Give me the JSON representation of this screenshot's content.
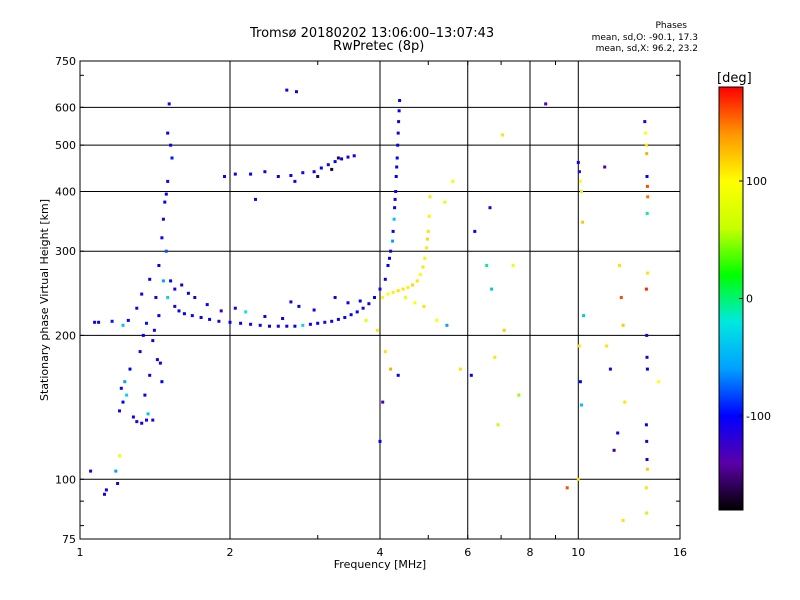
{
  "title_line1": "Tromsø 20180202 13:06:00–13:07:43",
  "title_line2": "RwPretec (8p)",
  "phase_stats": {
    "title": "Phases",
    "o_line": "mean, sd,O: -90.1, 17.3",
    "x_line": "mean, sd,X:  96.2, 23.2"
  },
  "chart_data": {
    "type": "scatter",
    "xlabel": "Frequency [MHz]",
    "ylabel": "Stationary phase Virtual Height [km]",
    "x_scale": "log",
    "y_scale": "log",
    "xlim": [
      1,
      16
    ],
    "ylim": [
      75,
      750
    ],
    "xticks": [
      1,
      2,
      4,
      6,
      8,
      10,
      16
    ],
    "xtick_labels": [
      "1",
      "2",
      "4",
      "6",
      "8",
      "10",
      "16"
    ],
    "yticks": [
      75,
      100,
      200,
      300,
      400,
      500,
      600,
      750
    ],
    "ytick_labels": [
      "75",
      "100",
      "200",
      "300",
      "400",
      "500",
      "600",
      "750"
    ],
    "grid": true,
    "colorbar": {
      "label": "[deg]",
      "range": [
        -180,
        180
      ],
      "tick_values": [
        100,
        0,
        -100
      ],
      "tick_labels": [
        "100",
        "0",
        "-100"
      ],
      "colors": [
        "#000000",
        "#5a00a8",
        "#0000ff",
        "#00a0ff",
        "#00e8e0",
        "#00ff00",
        "#c8ff00",
        "#ffff00",
        "#ff9600",
        "#ff0000"
      ]
    },
    "series": [
      {
        "values": [
          [
            1.05,
            104,
            -105
          ],
          [
            1.12,
            93,
            -110
          ],
          [
            1.13,
            95,
            -108
          ],
          [
            1.18,
            104,
            -60
          ],
          [
            1.2,
            112,
            90
          ],
          [
            1.19,
            98,
            -110
          ],
          [
            1.07,
            213,
            -110
          ],
          [
            1.09,
            213,
            -105
          ],
          [
            1.16,
            214,
            -95
          ],
          [
            1.22,
            210,
            -40
          ],
          [
            1.25,
            215,
            -100
          ],
          [
            1.2,
            139,
            -110
          ],
          [
            1.22,
            145,
            -100
          ],
          [
            1.24,
            150,
            -30
          ],
          [
            1.21,
            155,
            -110
          ],
          [
            1.23,
            160,
            -60
          ],
          [
            1.26,
            170,
            -100
          ],
          [
            1.28,
            135,
            -110
          ],
          [
            1.3,
            132,
            -115
          ],
          [
            1.33,
            131,
            -105
          ],
          [
            1.36,
            133,
            -110
          ],
          [
            1.37,
            137,
            -40
          ],
          [
            1.4,
            133,
            -110
          ],
          [
            1.35,
            150,
            -100
          ],
          [
            1.38,
            165,
            -105
          ],
          [
            1.32,
            185,
            -110
          ],
          [
            1.34,
            200,
            -100
          ],
          [
            1.36,
            212,
            -95
          ],
          [
            1.3,
            228,
            -110
          ],
          [
            1.33,
            244,
            -105
          ],
          [
            1.38,
            262,
            -100
          ],
          [
            1.42,
            240,
            -110
          ],
          [
            1.44,
            220,
            -100
          ],
          [
            1.4,
            195,
            -105
          ],
          [
            1.43,
            178,
            -110
          ],
          [
            1.46,
            160,
            -100
          ],
          [
            1.45,
            175,
            -105
          ],
          [
            1.41,
            205,
            -110
          ],
          [
            1.44,
            280,
            -100
          ],
          [
            1.46,
            320,
            -105
          ],
          [
            1.47,
            350,
            -110
          ],
          [
            1.48,
            380,
            -100
          ],
          [
            1.49,
            395,
            -105
          ],
          [
            1.5,
            420,
            -110
          ],
          [
            1.5,
            530,
            -105
          ],
          [
            1.51,
            610,
            -110
          ],
          [
            1.52,
            500,
            -100
          ],
          [
            1.53,
            470,
            -95
          ],
          [
            1.49,
            300,
            -80
          ],
          [
            1.47,
            260,
            -60
          ],
          [
            1.5,
            240,
            -30
          ],
          [
            1.52,
            260,
            -100
          ],
          [
            1.55,
            230,
            -110
          ],
          [
            1.58,
            225,
            -105
          ],
          [
            1.62,
            222,
            -100
          ],
          [
            1.68,
            220,
            -110
          ],
          [
            1.75,
            218,
            -105
          ],
          [
            1.82,
            216,
            -100
          ],
          [
            1.9,
            214,
            -110
          ],
          [
            2.0,
            213,
            -105
          ],
          [
            2.1,
            212,
            -100
          ],
          [
            2.2,
            211,
            -110
          ],
          [
            2.3,
            210,
            -105
          ],
          [
            2.4,
            209,
            -100
          ],
          [
            2.5,
            209,
            -110
          ],
          [
            2.6,
            209,
            -105
          ],
          [
            2.7,
            209,
            -100
          ],
          [
            2.8,
            210,
            -30
          ],
          [
            2.9,
            211,
            -105
          ],
          [
            3.0,
            212,
            -100
          ],
          [
            3.1,
            213,
            -110
          ],
          [
            3.2,
            214,
            -105
          ],
          [
            3.3,
            216,
            -100
          ],
          [
            3.4,
            218,
            -110
          ],
          [
            3.5,
            221,
            -105
          ],
          [
            3.6,
            224,
            -100
          ],
          [
            3.7,
            228,
            -110
          ],
          [
            3.8,
            233,
            -105
          ],
          [
            3.9,
            240,
            -100
          ],
          [
            4.0,
            250,
            -110
          ],
          [
            4.1,
            262,
            -105
          ],
          [
            4.15,
            280,
            -100
          ],
          [
            4.2,
            300,
            -110
          ],
          [
            4.25,
            330,
            -105
          ],
          [
            4.28,
            370,
            -100
          ],
          [
            4.3,
            400,
            -110
          ],
          [
            4.32,
            450,
            -105
          ],
          [
            4.34,
            500,
            -100
          ],
          [
            4.36,
            560,
            -110
          ],
          [
            4.38,
            620,
            -105
          ],
          [
            4.37,
            590,
            -100
          ],
          [
            4.35,
            530,
            -110
          ],
          [
            4.33,
            470,
            -105
          ],
          [
            4.31,
            430,
            -100
          ],
          [
            4.29,
            385,
            -110
          ],
          [
            4.27,
            350,
            -40
          ],
          [
            4.24,
            315,
            -60
          ],
          [
            4.18,
            290,
            -105
          ],
          [
            1.92,
            225,
            -120
          ],
          [
            2.05,
            228,
            -110
          ],
          [
            2.15,
            224,
            -20
          ],
          [
            2.35,
            219,
            -110
          ],
          [
            2.55,
            217,
            -105
          ],
          [
            2.65,
            235,
            -110
          ],
          [
            2.75,
            230,
            -100
          ],
          [
            2.95,
            226,
            -105
          ],
          [
            3.25,
            240,
            -110
          ],
          [
            3.45,
            234,
            -105
          ],
          [
            3.65,
            236,
            -100
          ],
          [
            3.75,
            215,
            80
          ],
          [
            1.55,
            250,
            -110
          ],
          [
            1.6,
            255,
            -105
          ],
          [
            1.65,
            245,
            -100
          ],
          [
            1.7,
            240,
            -110
          ],
          [
            1.8,
            232,
            -105
          ],
          [
            1.95,
            430,
            -110
          ],
          [
            2.05,
            435,
            -105
          ],
          [
            2.2,
            435,
            -100
          ],
          [
            2.35,
            440,
            -110
          ],
          [
            2.5,
            430,
            -105
          ],
          [
            2.65,
            432,
            -100
          ],
          [
            2.8,
            438,
            -110
          ],
          [
            2.95,
            440,
            -105
          ],
          [
            3.05,
            448,
            -100
          ],
          [
            3.15,
            455,
            -110
          ],
          [
            3.25,
            462,
            -105
          ],
          [
            3.35,
            468,
            -100
          ],
          [
            3.45,
            472,
            -110
          ],
          [
            3.55,
            475,
            -105
          ],
          [
            3.0,
            430,
            -160
          ],
          [
            3.2,
            445,
            -170
          ],
          [
            3.3,
            470,
            -160
          ],
          [
            2.7,
            420,
            -110
          ],
          [
            2.25,
            385,
            -110
          ],
          [
            2.6,
            652,
            -110
          ],
          [
            2.72,
            647,
            -110
          ],
          [
            4.05,
            240,
            95
          ],
          [
            4.15,
            244,
            100
          ],
          [
            4.25,
            246,
            105
          ],
          [
            4.35,
            248,
            110
          ],
          [
            4.45,
            250,
            110
          ],
          [
            4.55,
            252,
            105
          ],
          [
            4.65,
            255,
            115
          ],
          [
            4.75,
            260,
            110
          ],
          [
            4.82,
            268,
            100
          ],
          [
            4.88,
            278,
            110
          ],
          [
            4.92,
            290,
            105
          ],
          [
            4.96,
            305,
            110
          ],
          [
            4.98,
            318,
            115
          ],
          [
            5.0,
            330,
            110
          ],
          [
            5.02,
            355,
            105
          ],
          [
            5.04,
            390,
            110
          ],
          [
            4.9,
            230,
            110
          ],
          [
            4.7,
            234,
            100
          ],
          [
            4.5,
            240,
            95
          ],
          [
            5.4,
            380,
            80
          ],
          [
            5.6,
            420,
            90
          ],
          [
            4.1,
            185,
            110
          ],
          [
            4.2,
            170,
            130
          ],
          [
            4.35,
            165,
            -100
          ],
          [
            4.05,
            145,
            -130
          ],
          [
            4.0,
            120,
            -100
          ],
          [
            3.95,
            205,
            110
          ],
          [
            5.2,
            215,
            100
          ],
          [
            5.45,
            210,
            -60
          ],
          [
            5.8,
            170,
            110
          ],
          [
            6.1,
            165,
            -100
          ],
          [
            6.2,
            330,
            -100
          ],
          [
            6.55,
            280,
            -10
          ],
          [
            6.65,
            370,
            -110
          ],
          [
            6.8,
            180,
            110
          ],
          [
            7.1,
            205,
            120
          ],
          [
            7.6,
            150,
            50
          ],
          [
            7.05,
            525,
            110
          ],
          [
            7.4,
            280,
            90
          ],
          [
            6.7,
            250,
            -40
          ],
          [
            6.9,
            130,
            60
          ],
          [
            8.6,
            610,
            -130
          ],
          [
            9.5,
            96,
            160
          ],
          [
            10.0,
            460,
            -110
          ],
          [
            10.05,
            440,
            -120
          ],
          [
            10.1,
            420,
            100
          ],
          [
            10.15,
            400,
            110
          ],
          [
            10.2,
            345,
            120
          ],
          [
            10.25,
            220,
            -40
          ],
          [
            10.05,
            190,
            110
          ],
          [
            10.1,
            160,
            -100
          ],
          [
            10.15,
            143,
            -40
          ],
          [
            10.0,
            100,
            110
          ],
          [
            11.3,
            450,
            -130
          ],
          [
            11.4,
            190,
            110
          ],
          [
            11.6,
            170,
            -110
          ],
          [
            11.8,
            115,
            -150
          ],
          [
            12.0,
            125,
            -100
          ],
          [
            12.1,
            280,
            110
          ],
          [
            12.2,
            240,
            160
          ],
          [
            12.3,
            210,
            120
          ],
          [
            12.4,
            145,
            110
          ],
          [
            12.3,
            82,
            110
          ],
          [
            13.6,
            560,
            -110
          ],
          [
            13.65,
            530,
            100
          ],
          [
            13.7,
            500,
            110
          ],
          [
            13.72,
            480,
            130
          ],
          [
            13.74,
            430,
            -100
          ],
          [
            13.76,
            410,
            160
          ],
          [
            13.78,
            390,
            150
          ],
          [
            13.75,
            360,
            -10
          ],
          [
            13.77,
            270,
            110
          ],
          [
            13.7,
            250,
            170
          ],
          [
            13.72,
            200,
            -110
          ],
          [
            13.74,
            180,
            -110
          ],
          [
            13.76,
            170,
            -100
          ],
          [
            13.7,
            130,
            -100
          ],
          [
            13.72,
            120,
            -110
          ],
          [
            13.74,
            110,
            -110
          ],
          [
            13.76,
            105,
            120
          ],
          [
            13.7,
            96,
            110
          ],
          [
            13.72,
            85,
            60
          ],
          [
            14.5,
            160,
            100
          ]
        ]
      }
    ]
  }
}
